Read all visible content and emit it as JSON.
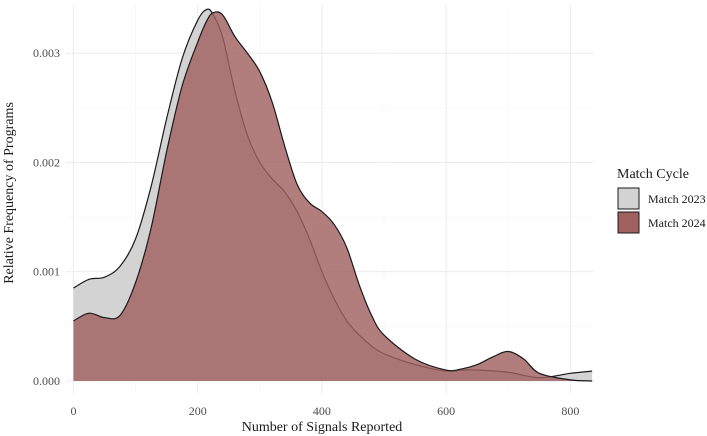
{
  "chart_data": {
    "type": "area",
    "title": "",
    "xlabel": "Number of Signals Reported",
    "ylabel": "Relative Frequency of Programs",
    "xlim": [
      -12,
      838
    ],
    "ylim": [
      -0.00011,
      0.00344
    ],
    "x_ticks": [
      0,
      200,
      400,
      600,
      800
    ],
    "y_ticks": [
      0.0,
      0.001,
      0.002,
      0.003
    ],
    "x_tick_labels": [
      "0",
      "200",
      "400",
      "600",
      "800"
    ],
    "y_tick_labels": [
      "0.000",
      "0.001",
      "0.002",
      "0.003"
    ],
    "grid": true,
    "legend": {
      "title": "Match Cycle",
      "position": "right"
    },
    "series": [
      {
        "name": "Match 2023",
        "color": "#d3d3d3",
        "x": [
          0,
          25,
          50,
          75,
          100,
          125,
          150,
          175,
          200,
          215,
          225,
          240,
          260,
          280,
          300,
          320,
          340,
          360,
          380,
          400,
          420,
          440,
          460,
          480,
          500,
          550,
          600,
          625,
          650,
          700,
          750,
          800,
          835
        ],
        "y": [
          0.00085,
          0.00093,
          0.00095,
          0.00105,
          0.0013,
          0.00178,
          0.0024,
          0.00295,
          0.0033,
          0.0034,
          0.00335,
          0.00315,
          0.00265,
          0.00225,
          0.002,
          0.00185,
          0.00173,
          0.00155,
          0.0013,
          0.001,
          0.00075,
          0.00055,
          0.00042,
          0.00032,
          0.00025,
          0.00015,
          9e-05,
          0.0001,
          0.0001,
          8e-05,
          3e-05,
          7e-05,
          9e-05
        ]
      },
      {
        "name": "Match 2024",
        "color": "#a06060",
        "x": [
          0,
          25,
          50,
          75,
          100,
          125,
          150,
          175,
          200,
          215,
          225,
          240,
          260,
          280,
          300,
          320,
          340,
          360,
          380,
          400,
          420,
          440,
          460,
          480,
          500,
          550,
          600,
          625,
          650,
          675,
          700,
          725,
          750,
          800,
          835
        ],
        "y": [
          0.00055,
          0.00062,
          0.00058,
          0.0006,
          0.0009,
          0.0014,
          0.0021,
          0.0027,
          0.0031,
          0.0033,
          0.00337,
          0.00335,
          0.00315,
          0.003,
          0.00283,
          0.00255,
          0.00215,
          0.0018,
          0.00163,
          0.00155,
          0.00143,
          0.00122,
          0.00088,
          0.0006,
          0.00042,
          0.0002,
          0.0001,
          0.00011,
          0.00015,
          0.00022,
          0.00027,
          0.0002,
          7e-05,
          1e-05,
          0.0
        ]
      }
    ]
  }
}
